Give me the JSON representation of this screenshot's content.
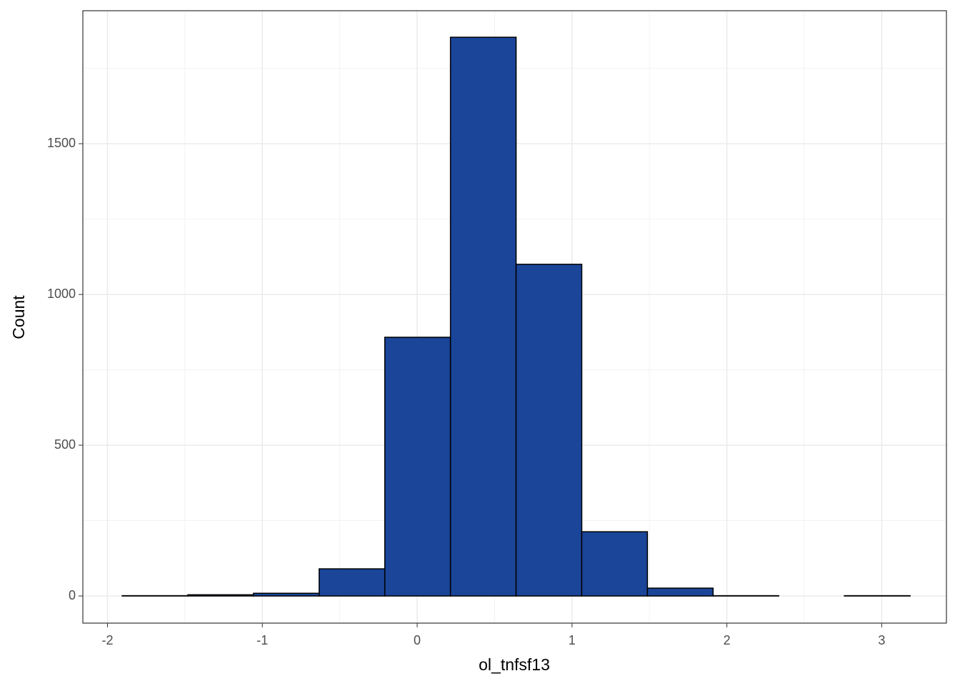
{
  "chart_data": {
    "type": "histogram",
    "x_label": "ol_tnfsf13",
    "y_label": "Count",
    "bins": [
      -1.905,
      -1.481,
      -1.057,
      -0.633,
      -0.209,
      0.215,
      0.639,
      1.063,
      1.487,
      1.911,
      2.335,
      2.759,
      3.183
    ],
    "values": [
      1,
      4,
      9,
      90,
      858,
      1853,
      1100,
      213,
      26,
      1,
      0,
      1
    ],
    "color": "#1a4599",
    "xlim": [
      -2.159,
      3.418
    ],
    "ylim": [
      -90,
      1941
    ],
    "xticks": [
      -2,
      -1,
      0,
      1,
      2,
      3
    ],
    "yticks": [
      0,
      500,
      1000,
      1500
    ],
    "xminor": [
      -1.5,
      -0.5,
      0.5,
      1.5,
      2.5
    ],
    "yminor": [
      250,
      750,
      1250,
      1750
    ],
    "grid": true
  }
}
